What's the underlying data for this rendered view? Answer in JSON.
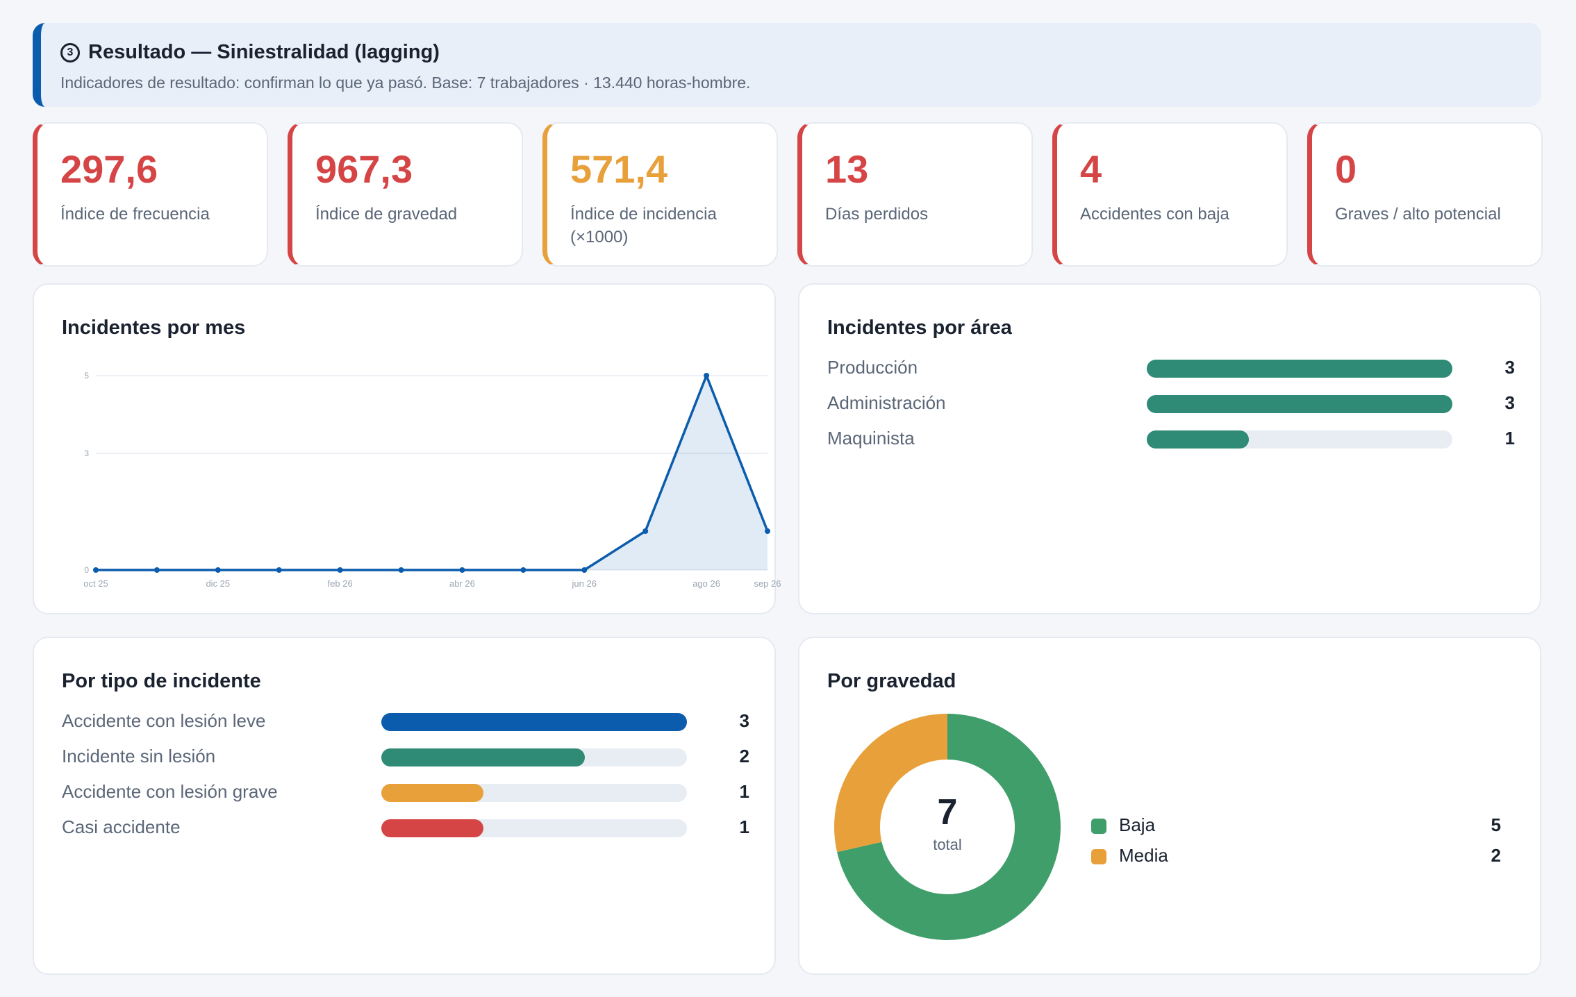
{
  "header": {
    "step_icon": "3",
    "title": "Resultado — Siniestralidad (lagging)",
    "subtitle": "Indicadores de resultado: confirman lo que ya pasó. Base: 7 trabajadores · 13.440 horas-hombre."
  },
  "kpis": [
    {
      "value": "297,6",
      "label": "Índice de frecuencia",
      "color": "#d64545"
    },
    {
      "value": "967,3",
      "label": "Índice de gravedad",
      "color": "#d64545"
    },
    {
      "value": "571,4",
      "label": "Índice de incidencia (×1000)",
      "color": "#e8a03b"
    },
    {
      "value": "13",
      "label": "Días perdidos",
      "color": "#d64545"
    },
    {
      "value": "4",
      "label": "Accidentes con baja",
      "color": "#d64545"
    },
    {
      "value": "0",
      "label": "Graves / alto potencial",
      "color": "#d64545"
    }
  ],
  "chart_data": [
    {
      "type": "area",
      "title": "Incidentes por mes",
      "x": [
        "oct 25",
        "nov 25",
        "dic 25",
        "ene 26",
        "feb 26",
        "mar 26",
        "abr 26",
        "may 26",
        "jun 26",
        "jul 26",
        "ago 26",
        "sep 26"
      ],
      "x_tick_labels": [
        "oct 25",
        "dic 25",
        "feb 26",
        "abr 26",
        "jun 26",
        "ago 26",
        "sep 26"
      ],
      "values": [
        0,
        0,
        0,
        0,
        0,
        0,
        0,
        0,
        0,
        1,
        5,
        1
      ],
      "y_ticks": [
        0,
        3,
        5
      ],
      "ylim": [
        0,
        5
      ],
      "grid": true,
      "color": "#0b5cad"
    },
    {
      "type": "bar",
      "title": "Incidentes por área",
      "orientation": "horizontal",
      "categories": [
        "Producción",
        "Administración",
        "Maquinista"
      ],
      "values": [
        3,
        3,
        1
      ],
      "max": 3,
      "colors": [
        "#2f8b76",
        "#2f8b76",
        "#2f8b76"
      ]
    },
    {
      "type": "bar",
      "title": "Por tipo de incidente",
      "orientation": "horizontal",
      "categories": [
        "Accidente con lesión leve",
        "Incidente sin lesión",
        "Accidente con lesión grave",
        "Casi accidente"
      ],
      "values": [
        3,
        2,
        1,
        1
      ],
      "max": 3,
      "colors": [
        "#0b5cad",
        "#2f8b76",
        "#e8a03b",
        "#d64545"
      ]
    },
    {
      "type": "pie",
      "title": "Por gravedad",
      "categories": [
        "Baja",
        "Media"
      ],
      "values": [
        5,
        2
      ],
      "colors": [
        "#3f9e6a",
        "#e8a03b"
      ],
      "center_value": "7",
      "center_label": "total"
    }
  ]
}
